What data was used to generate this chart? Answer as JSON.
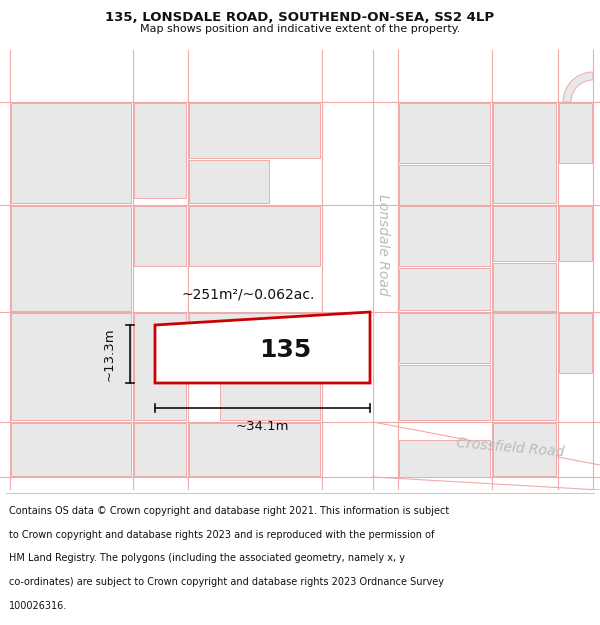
{
  "title_line1": "135, LONSDALE ROAD, SOUTHEND-ON-SEA, SS2 4LP",
  "title_line2": "Map shows position and indicative extent of the property.",
  "property_number": "135",
  "area_label": "~251m²/~0.062ac.",
  "width_label": "~34.1m",
  "height_label": "~13.3m",
  "road_label_1": "Lonsdale Road",
  "road_label_2": "Crossfield Road",
  "bg_color": "#ffffff",
  "map_bg": "#f7eeee",
  "block_fill": "#e8e8e8",
  "block_stroke": "#f0aaaa",
  "property_fill": "#ffffff",
  "property_stroke": "#cc0000",
  "dim_color": "#111111",
  "title_color": "#111111",
  "footer_color": "#111111",
  "road_color": "#f0aaaa",
  "footer_lines": [
    "Contains OS data © Crown copyright and database right 2021. This information is subject",
    "to Crown copyright and database rights 2023 and is reproduced with the permission of",
    "HM Land Registry. The polygons (including the associated geometry, namely x, y",
    "co-ordinates) are subject to Crown copyright and database rights 2023 Ordnance Survey",
    "100026316."
  ]
}
